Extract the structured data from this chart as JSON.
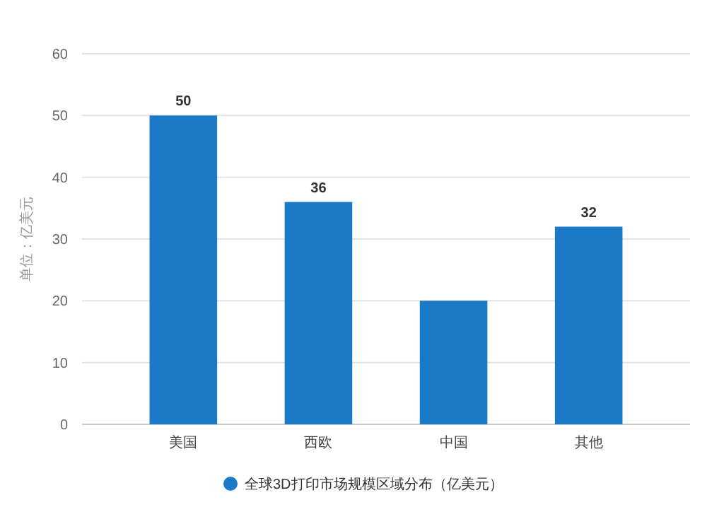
{
  "chart_data": {
    "type": "bar",
    "categories": [
      "美国",
      "西欧",
      "中国",
      "其他"
    ],
    "series": [
      {
        "name": "全球3D打印市场规模区域分布（亿美元）",
        "color": "#1a7ac8",
        "values": [
          50,
          36,
          20,
          32
        ],
        "value_labels": [
          "50",
          "36",
          null,
          "32"
        ]
      }
    ],
    "ylabel": "单位：亿美元",
    "ylim": [
      0,
      60
    ],
    "yticks": [
      0,
      10,
      20,
      30,
      40,
      50,
      60
    ],
    "grid": "y",
    "legend": "bottom"
  }
}
